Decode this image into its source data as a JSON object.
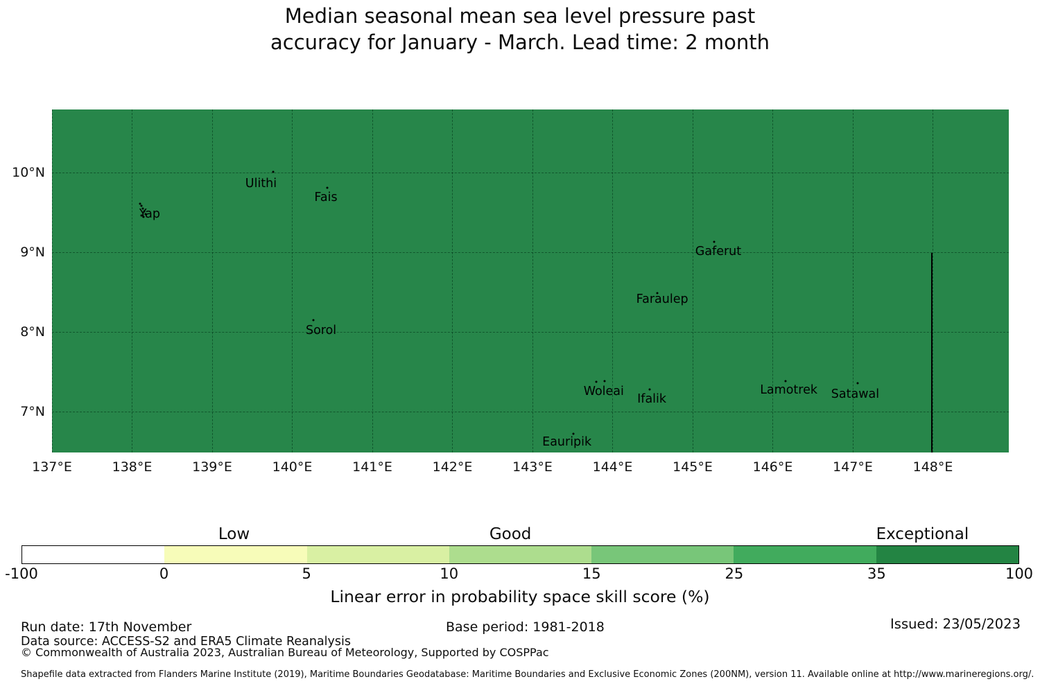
{
  "title": {
    "line1": "Median seasonal mean sea level pressure past",
    "line2": "accuracy for January - March. Lead time: 2 month"
  },
  "chart_data": {
    "type": "map",
    "extent": {
      "lon_min": 137.0,
      "lon_max": 148.948,
      "lat_min": 6.492,
      "lat_max": 10.796
    },
    "map_fill": "#27864a",
    "grid_on": true,
    "lat_ticks": [
      {
        "label": "10°N",
        "value": 10
      },
      {
        "label": "9°N",
        "value": 9
      },
      {
        "label": "8°N",
        "value": 8
      },
      {
        "label": "7°N",
        "value": 7
      }
    ],
    "lon_ticks": [
      {
        "label": "137°E",
        "value": 137
      },
      {
        "label": "138°E",
        "value": 138
      },
      {
        "label": "139°E",
        "value": 139
      },
      {
        "label": "140°E",
        "value": 140
      },
      {
        "label": "141°E",
        "value": 141
      },
      {
        "label": "142°E",
        "value": 142
      },
      {
        "label": "143°E",
        "value": 143
      },
      {
        "label": "144°E",
        "value": 144
      },
      {
        "label": "145°E",
        "value": 145
      },
      {
        "label": "146°E",
        "value": 146
      },
      {
        "label": "147°E",
        "value": 147
      },
      {
        "label": "148°E",
        "value": 148
      }
    ],
    "islands": [
      {
        "label": "Yap",
        "label_lon": 138.22,
        "label_lat": 9.483,
        "markers": [
          [
            138.1,
            9.615
          ],
          [
            138.115,
            9.585
          ],
          [
            138.13,
            9.55
          ],
          [
            138.15,
            9.515
          ],
          [
            138.168,
            9.482
          ],
          [
            138.145,
            9.452
          ],
          [
            138.115,
            9.468
          ]
        ]
      },
      {
        "label": "Ulithi",
        "label_lon": 139.61,
        "label_lat": 9.865,
        "markers": [
          [
            139.76,
            10.012
          ]
        ]
      },
      {
        "label": "Fais",
        "label_lon": 140.42,
        "label_lat": 9.69,
        "markers": [
          [
            140.44,
            9.81
          ]
        ]
      },
      {
        "label": "Sorol",
        "label_lon": 140.36,
        "label_lat": 8.022,
        "markers": [
          [
            140.26,
            8.15
          ]
        ]
      },
      {
        "label": "Gaferut",
        "label_lon": 145.32,
        "label_lat": 9.013,
        "markers": [
          [
            145.27,
            9.135
          ]
        ]
      },
      {
        "label": "Faraulep",
        "label_lon": 144.62,
        "label_lat": 8.413,
        "markers": [
          [
            144.56,
            8.49
          ]
        ]
      },
      {
        "label": "Woleai",
        "label_lon": 143.89,
        "label_lat": 7.256,
        "markers": [
          [
            143.8,
            7.382
          ],
          [
            143.9,
            7.386
          ]
        ]
      },
      {
        "label": "Ifalik",
        "label_lon": 144.49,
        "label_lat": 7.16,
        "markers": [
          [
            144.46,
            7.28
          ]
        ]
      },
      {
        "label": "Lamotrek",
        "label_lon": 146.2,
        "label_lat": 7.272,
        "markers": [
          [
            146.16,
            7.388
          ]
        ]
      },
      {
        "label": "Satawal",
        "label_lon": 147.03,
        "label_lat": 7.22,
        "markers": [
          [
            147.06,
            7.36
          ]
        ]
      },
      {
        "label": "Eauripik",
        "label_lon": 143.43,
        "label_lat": 6.62,
        "markers": [
          [
            143.51,
            6.73
          ]
        ]
      }
    ],
    "eez_boundary": {
      "lon": 147.99,
      "lat_from": 9.0,
      "lat_to": 6.492,
      "color": "#000000"
    },
    "colorbar": {
      "bin_colors": [
        "#ffffff",
        "#f7fcb9",
        "#d9f0a3",
        "#addd8e",
        "#78c679",
        "#41ab5d",
        "#238443"
      ],
      "tick_labels": [
        "-100",
        "0",
        "5",
        "10",
        "15",
        "25",
        "35",
        "100"
      ],
      "categories": [
        {
          "label": "Low",
          "pos": 0.213
        },
        {
          "label": "Good",
          "pos": 0.49
        },
        {
          "label": "Exceptional",
          "pos": 0.903
        }
      ],
      "axis_label": "Linear error in probability space skill score (%)"
    }
  },
  "footer": {
    "run_date": "Run date: 17th November",
    "base_period": "Base period: 1981-2018",
    "issued": "Issued: 23/05/2023",
    "data_source": "Data source: ACCESS-S2 and ERA5 Climate Reanalysis",
    "copyright": "© Commonwealth of Australia 2023, Australian Bureau of Meteorology, Supported by COSPPac",
    "shapefile_note": "Shapefile data extracted from Flanders Marine Institute (2019), Maritime Boundaries Geodatabase: Maritime Boundaries and Exclusive Economic Zones (200NM), version 11. Available online at http://www.marineregions.org/."
  }
}
